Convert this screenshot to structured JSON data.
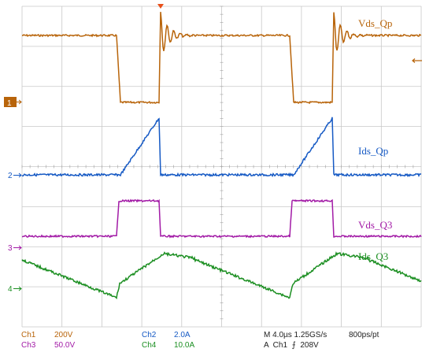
{
  "channels": [
    {
      "id": "ch1",
      "name": "Vds_Qp",
      "color": "#b8640a",
      "marker": "1",
      "marker_style": "box",
      "ground_y": 130
    },
    {
      "id": "ch2",
      "name": "Ids_Qp",
      "color": "#1559c4",
      "marker": "2",
      "marker_style": "arrow",
      "ground_y": 222
    },
    {
      "id": "ch3",
      "name": "Vds_Q3",
      "color": "#a21aa6",
      "marker": "3",
      "marker_style": "arrow",
      "ground_y": 314
    },
    {
      "id": "ch4",
      "name": "Ids_Q3",
      "color": "#1c8f22",
      "marker": "4",
      "marker_style": "arrow",
      "ground_y": 366
    }
  ],
  "trigger_marker": {
    "color": "#e8501a"
  },
  "trigger_level_marker": {
    "color": "#b8640a"
  },
  "readout": {
    "ch1": {
      "label": "Ch1",
      "scale": "200V",
      "color": "#b8640a"
    },
    "ch2": {
      "label": "Ch2",
      "scale": "2.0A",
      "color": "#1559c4"
    },
    "ch3": {
      "label": "Ch3",
      "scale": "50.0V",
      "color": "#a21aa6"
    },
    "ch4": {
      "label": "Ch4",
      "scale": "10.0A",
      "color": "#1c8f22"
    },
    "timebase": "M 4.0µs 1.25GS/s",
    "resolution": "800ps/pt",
    "trigger": "A  Ch1  ⨍  208V"
  }
}
